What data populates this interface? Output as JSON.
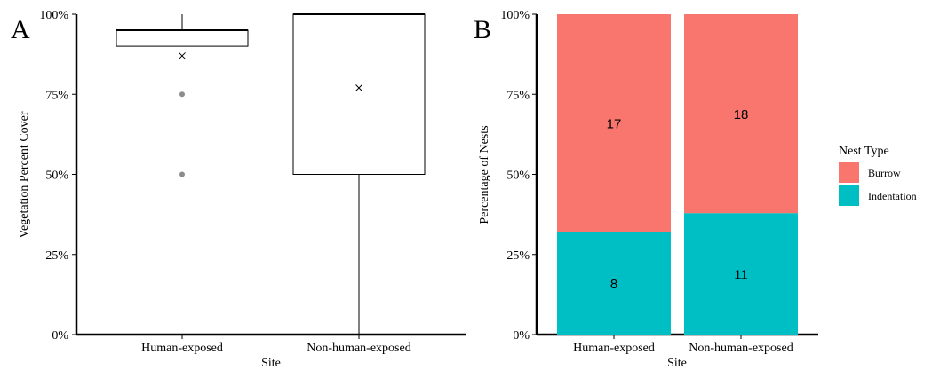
{
  "chart_data": [
    {
      "panel_label": "A",
      "type": "box",
      "xlabel": "Site",
      "ylabel": "Vegetation Percent Cover",
      "categories": [
        "Human-exposed",
        "Non-human-exposed"
      ],
      "ylim": [
        0,
        100
      ],
      "yticks": [
        "0%",
        "25%",
        "50%",
        "75%",
        "100%"
      ],
      "boxes": [
        {
          "category": "Human-exposed",
          "whisker_low": 90,
          "q1": 90,
          "median": 95,
          "q3": 95,
          "whisker_high": 100,
          "mean": 87,
          "outliers": [
            75,
            50
          ]
        },
        {
          "category": "Non-human-exposed",
          "whisker_low": 0,
          "q1": 50,
          "median": 100,
          "q3": 100,
          "whisker_high": 100,
          "mean": 77,
          "outliers": []
        }
      ],
      "grid": false
    },
    {
      "panel_label": "B",
      "type": "bar",
      "stacked": true,
      "xlabel": "Site",
      "ylabel": "Percentage of Nests",
      "categories": [
        "Human-exposed",
        "Non-human-exposed"
      ],
      "ylim": [
        0,
        100
      ],
      "yticks": [
        "0%",
        "25%",
        "50%",
        "75%",
        "100%"
      ],
      "series": [
        {
          "name": "Indentation",
          "color": "#00BFC4",
          "counts": [
            8,
            11
          ],
          "percent": [
            32,
            37.9
          ]
        },
        {
          "name": "Burrow",
          "color": "#F8766D",
          "counts": [
            17,
            18
          ],
          "percent": [
            68,
            62.1
          ]
        }
      ],
      "legend": {
        "title": "Nest Type",
        "entries": [
          "Burrow",
          "Indentation"
        ],
        "placement": "right"
      },
      "grid": false
    }
  ]
}
